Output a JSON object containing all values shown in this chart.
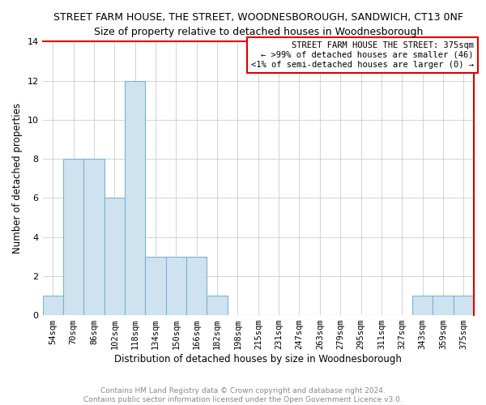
{
  "title": "STREET FARM HOUSE, THE STREET, WOODNESBOROUGH, SANDWICH, CT13 0NF",
  "subtitle": "Size of property relative to detached houses in Woodnesborough",
  "xlabel": "Distribution of detached houses by size in Woodnesborough",
  "ylabel": "Number of detached properties",
  "categories": [
    "54sqm",
    "70sqm",
    "86sqm",
    "102sqm",
    "118sqm",
    "134sqm",
    "150sqm",
    "166sqm",
    "182sqm",
    "198sqm",
    "215sqm",
    "231sqm",
    "247sqm",
    "263sqm",
    "279sqm",
    "295sqm",
    "311sqm",
    "327sqm",
    "343sqm",
    "359sqm",
    "375sqm"
  ],
  "values": [
    1,
    8,
    8,
    6,
    12,
    3,
    3,
    3,
    1,
    0,
    0,
    0,
    0,
    0,
    0,
    0,
    0,
    0,
    1,
    1,
    1
  ],
  "bar_color": "#cfe2f0",
  "bar_edge_color": "#7ab3d4",
  "highlight_index": 20,
  "ylim": [
    0,
    14
  ],
  "yticks": [
    0,
    2,
    4,
    6,
    8,
    10,
    12,
    14
  ],
  "annotation_title": "STREET FARM HOUSE THE STREET: 375sqm",
  "annotation_line1": "← >99% of detached houses are smaller (46)",
  "annotation_line2": "<1% of semi-detached houses are larger (0) →",
  "footer_line1": "Contains HM Land Registry data © Crown copyright and database right 2024.",
  "footer_line2": "Contains public sector information licensed under the Open Government Licence v3.0.",
  "grid_color": "#cccccc",
  "background_color": "#ffffff",
  "title_fontsize": 9,
  "tick_fontsize": 7.5,
  "ylabel_fontsize": 8.5,
  "xlabel_fontsize": 8.5,
  "red_border_color": "#dd0000"
}
